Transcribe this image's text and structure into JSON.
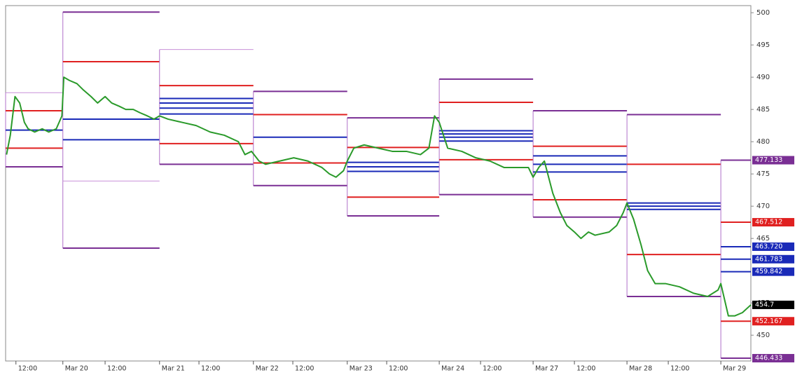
{
  "chart_data": {
    "type": "pivot-line",
    "xlim": [
      -0.61,
      7.33
    ],
    "ylim": [
      446,
      501.1
    ],
    "xticks": [
      {
        "value": -0.5,
        "label": "12:00"
      },
      {
        "value": 0,
        "label": "Mar 20"
      },
      {
        "value": 0.45,
        "label": "12:00"
      },
      {
        "value": 1.03,
        "label": "Mar 21"
      },
      {
        "value": 1.45,
        "label": "12:00"
      },
      {
        "value": 2.03,
        "label": "Mar 22"
      },
      {
        "value": 2.45,
        "label": "12:00"
      },
      {
        "value": 3.03,
        "label": "Mar 23"
      },
      {
        "value": 3.45,
        "label": "12:00"
      },
      {
        "value": 4.01,
        "label": "Mar 24"
      },
      {
        "value": 4.45,
        "label": "12:00"
      },
      {
        "value": 5.01,
        "label": "Mar 27"
      },
      {
        "value": 5.45,
        "label": "12:00"
      },
      {
        "value": 6.01,
        "label": "Mar 28"
      },
      {
        "value": 6.45,
        "label": "12:00"
      },
      {
        "value": 7.01,
        "label": "Mar 29"
      }
    ],
    "yticks": [
      450,
      455,
      465,
      470,
      475,
      480,
      485,
      490,
      495,
      500
    ],
    "days": [
      {
        "start": -0.61,
        "levels": [
          {
            "value": 487.6,
            "color": "#c890d8"
          },
          {
            "value": 484.8,
            "color": "#e02020"
          },
          {
            "value": 481.8,
            "color": "#1a2ab8"
          },
          {
            "value": 479.0,
            "color": "#e02020"
          },
          {
            "value": 476.1,
            "color": "#7a2f94"
          }
        ]
      },
      {
        "start": 0,
        "levels": [
          {
            "value": 500.1,
            "color": "#7a2f94"
          },
          {
            "value": 492.4,
            "color": "#e02020"
          },
          {
            "value": 483.5,
            "color": "#1a2ab8"
          },
          {
            "value": 480.3,
            "color": "#1a2ab8"
          },
          {
            "value": 473.9,
            "color": "#c890d8"
          },
          {
            "value": 463.5,
            "color": "#7a2f94"
          }
        ]
      },
      {
        "start": 1.03,
        "levels": [
          {
            "value": 494.3,
            "color": "#c890d8"
          },
          {
            "value": 488.7,
            "color": "#e02020"
          },
          {
            "value": 486.7,
            "color": "#1a2ab8"
          },
          {
            "value": 486.0,
            "color": "#1a2ab8"
          },
          {
            "value": 485.2,
            "color": "#1a2ab8"
          },
          {
            "value": 484.3,
            "color": "#1a2ab8"
          },
          {
            "value": 479.7,
            "color": "#e02020"
          },
          {
            "value": 476.5,
            "color": "#7a2f94"
          }
        ]
      },
      {
        "start": 2.03,
        "levels": [
          {
            "value": 487.8,
            "color": "#7a2f94"
          },
          {
            "value": 484.2,
            "color": "#e02020"
          },
          {
            "value": 480.7,
            "color": "#1a2ab8"
          },
          {
            "value": 476.7,
            "color": "#e02020"
          },
          {
            "value": 473.2,
            "color": "#7a2f94"
          }
        ]
      },
      {
        "start": 3.03,
        "levels": [
          {
            "value": 483.7,
            "color": "#7a2f94"
          },
          {
            "value": 479.1,
            "color": "#e02020"
          },
          {
            "value": 476.8,
            "color": "#1a2ab8"
          },
          {
            "value": 476.1,
            "color": "#1a2ab8"
          },
          {
            "value": 475.4,
            "color": "#1a2ab8"
          },
          {
            "value": 471.4,
            "color": "#e02020"
          },
          {
            "value": 468.5,
            "color": "#7a2f94"
          }
        ]
      },
      {
        "start": 4.01,
        "levels": [
          {
            "value": 489.7,
            "color": "#7a2f94"
          },
          {
            "value": 486.1,
            "color": "#e02020"
          },
          {
            "value": 481.7,
            "color": "#1a2ab8"
          },
          {
            "value": 481.2,
            "color": "#1a2ab8"
          },
          {
            "value": 480.7,
            "color": "#1a2ab8"
          },
          {
            "value": 480.1,
            "color": "#1a2ab8"
          },
          {
            "value": 477.2,
            "color": "#e02020"
          },
          {
            "value": 471.8,
            "color": "#7a2f94"
          }
        ]
      },
      {
        "start": 5.01,
        "levels": [
          {
            "value": 484.8,
            "color": "#7a2f94"
          },
          {
            "value": 479.3,
            "color": "#e02020"
          },
          {
            "value": 477.8,
            "color": "#1a2ab8"
          },
          {
            "value": 476.5,
            "color": "#1a2ab8"
          },
          {
            "value": 475.3,
            "color": "#1a2ab8"
          },
          {
            "value": 471.0,
            "color": "#e02020"
          },
          {
            "value": 468.3,
            "color": "#7a2f94"
          }
        ]
      },
      {
        "start": 6.01,
        "levels": [
          {
            "value": 484.2,
            "color": "#7a2f94"
          },
          {
            "value": 476.5,
            "color": "#e02020"
          },
          {
            "value": 470.5,
            "color": "#1a2ab8"
          },
          {
            "value": 470.0,
            "color": "#1a2ab8"
          },
          {
            "value": 469.5,
            "color": "#1a2ab8"
          },
          {
            "value": 462.5,
            "color": "#e02020"
          },
          {
            "value": 456.0,
            "color": "#7a2f94"
          }
        ]
      },
      {
        "start": 7.01,
        "levels": [
          {
            "value": 477.133,
            "color": "#7a2f94"
          },
          {
            "value": 467.512,
            "color": "#e02020"
          },
          {
            "value": 463.72,
            "color": "#1a2ab8"
          },
          {
            "value": 461.783,
            "color": "#1a2ab8"
          },
          {
            "value": 459.842,
            "color": "#1a2ab8"
          },
          {
            "value": 452.167,
            "color": "#e02020"
          },
          {
            "value": 446.433,
            "color": "#7a2f94"
          }
        ]
      }
    ],
    "price": {
      "color": "#2a9a2a",
      "x": [
        -0.6,
        -0.56,
        -0.51,
        -0.46,
        -0.41,
        -0.37,
        -0.3,
        -0.22,
        -0.15,
        -0.07,
        -0.01,
        0.01,
        0.07,
        0.15,
        0.22,
        0.3,
        0.37,
        0.45,
        0.52,
        0.6,
        0.67,
        0.75,
        0.82,
        0.9,
        0.97,
        1.03,
        1.12,
        1.27,
        1.42,
        1.57,
        1.72,
        1.87,
        1.94,
        2.01,
        2.09,
        2.16,
        2.31,
        2.46,
        2.61,
        2.76,
        2.84,
        2.91,
        2.99,
        3.03,
        3.1,
        3.21,
        3.36,
        3.51,
        3.66,
        3.81,
        3.9,
        3.96,
        4.01,
        4.1,
        4.25,
        4.4,
        4.55,
        4.7,
        4.85,
        4.96,
        5.01,
        5.07,
        5.13,
        5.22,
        5.3,
        5.37,
        5.45,
        5.52,
        5.6,
        5.67,
        5.82,
        5.9,
        5.97,
        6.01,
        6.08,
        6.16,
        6.23,
        6.31,
        6.42,
        6.57,
        6.72,
        6.87,
        6.98,
        7.01,
        7.09,
        7.16,
        7.24,
        7.33
      ],
      "values": [
        478,
        481,
        487,
        486,
        483,
        482,
        481.5,
        482,
        481.5,
        482,
        484,
        490,
        489.5,
        489,
        488,
        487,
        486,
        487,
        486,
        485.5,
        485,
        485,
        484.5,
        484,
        483.5,
        484,
        483.5,
        483,
        482.5,
        481.5,
        481,
        480,
        478,
        478.5,
        477,
        476.5,
        477,
        477.5,
        477,
        476,
        475,
        474.5,
        475.5,
        477,
        479,
        479.5,
        479,
        478.5,
        478.5,
        478,
        479,
        484,
        483,
        479,
        478.5,
        477.5,
        477,
        476,
        476,
        476,
        474.5,
        476,
        477,
        472,
        469,
        467,
        466,
        465,
        466,
        465.5,
        466,
        467,
        469,
        470.5,
        468,
        464,
        460,
        458,
        458,
        457.5,
        456.5,
        456,
        457,
        458,
        453,
        453,
        453.5,
        454.7
      ]
    },
    "price_labels": [
      {
        "value": 477.133,
        "label": "477.133",
        "color": "#7a2f94"
      },
      {
        "value": 467.512,
        "label": "467.512",
        "color": "#e02020"
      },
      {
        "value": 463.72,
        "label": "463.720",
        "color": "#1a2ab8"
      },
      {
        "value": 461.783,
        "label": "461.783",
        "color": "#1a2ab8"
      },
      {
        "value": 459.842,
        "label": "459.842",
        "color": "#1a2ab8"
      },
      {
        "value": 454.7,
        "label": "454.7",
        "color": "#000000"
      },
      {
        "value": 452.167,
        "label": "452.167",
        "color": "#e02020"
      },
      {
        "value": 446.433,
        "label": "446.433",
        "color": "#7a2f94"
      }
    ]
  }
}
